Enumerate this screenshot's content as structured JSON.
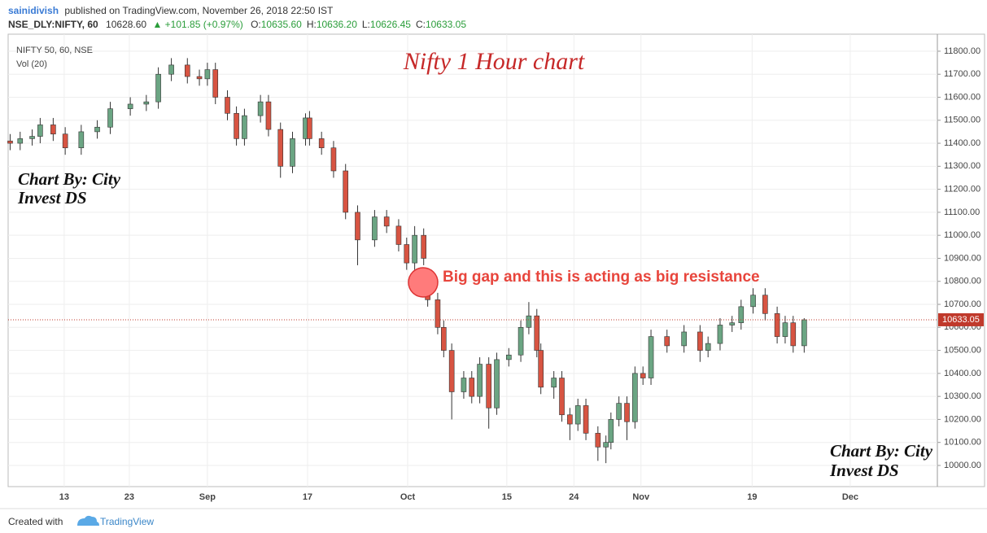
{
  "header": {
    "author": "sainidivish",
    "published": "published on TradingView.com, November 26, 2018 22:50 IST",
    "symbol": "NSE_DLY:NIFTY, 60",
    "price": "10628.60",
    "change": "▲ +101.85 (+0.97%)",
    "ohlc": [
      {
        "label": "O:",
        "value": "10635.60"
      },
      {
        "label": "H:",
        "value": "10636.20"
      },
      {
        "label": "L:",
        "value": "10626.45"
      },
      {
        "label": "C:",
        "value": "10633.05"
      }
    ]
  },
  "footer": {
    "created": "Created with",
    "brand": "TradingView"
  },
  "chart_data": {
    "type": "candlestick",
    "title": "Nifty 1 Hour chart",
    "pane_label": "NIFTY 50, 60, NSE",
    "volume_label": "Vol (20)",
    "watermarks": [
      [
        "Chart By: City",
        "Invest DS"
      ],
      [
        "Chart By: City",
        "Invest DS"
      ]
    ],
    "annotation": "Big gap and this is acting as big resistance",
    "up_color": "#6ba583",
    "down_color": "#d75442",
    "grid": true,
    "x": [
      -5.4,
      -4.4,
      -3.2,
      -2.4,
      -1.1,
      0.1,
      1.7,
      3.3,
      4.6,
      6.6,
      8.2,
      9.4,
      10.7,
      12.3,
      13.5,
      14.3,
      15.1,
      16.3,
      17.2,
      18.0,
      19.6,
      20.4,
      21.6,
      22.8,
      24.1,
      24.5,
      25.7,
      26.9,
      28.1,
      29.3,
      31.0,
      32.2,
      33.4,
      34.2,
      35.0,
      35.9,
      36.3,
      37.3,
      37.9,
      38.7,
      39.9,
      40.7,
      41.5,
      42.4,
      43.2,
      44.4,
      45.6,
      46.4,
      47.2,
      47.6,
      48.9,
      49.7,
      50.5,
      51.3,
      52.1,
      53.3,
      54.1,
      54.6,
      55.4,
      56.2,
      57.0,
      57.8,
      58.6,
      60.2,
      61.9,
      63.5,
      64.3,
      65.5,
      66.7,
      67.6,
      68.8,
      70.0,
      71.2,
      72.0,
      72.8,
      73.9
    ],
    "open": [
      11410,
      11400,
      11420,
      11430,
      11480,
      11440,
      11380,
      11450,
      11470,
      11550,
      11570,
      11580,
      11700,
      11740,
      11690,
      11680,
      11720,
      11600,
      11530,
      11420,
      11520,
      11580,
      11460,
      11300,
      11420,
      11510,
      11420,
      11380,
      11280,
      11100,
      10980,
      11080,
      11040,
      10960,
      10880,
      11000,
      10760,
      10720,
      10600,
      10500,
      10320,
      10380,
      10300,
      10440,
      10250,
      10460,
      10480,
      10600,
      10650,
      10500,
      10340,
      10380,
      10220,
      10180,
      10260,
      10140,
      10080,
      10100,
      10200,
      10270,
      10190,
      10400,
      10380,
      10560,
      10520,
      10580,
      10500,
      10530,
      10610,
      10620,
      10690,
      10740,
      10660,
      10560,
      10620,
      10520
    ],
    "high": [
      11440,
      11450,
      11460,
      11510,
      11510,
      11470,
      11480,
      11500,
      11580,
      11600,
      11610,
      11730,
      11770,
      11770,
      11720,
      11750,
      11750,
      11630,
      11560,
      11550,
      11610,
      11610,
      11490,
      11450,
      11530,
      11540,
      11450,
      11410,
      11310,
      11130,
      11110,
      11110,
      11070,
      10990,
      11040,
      11030,
      10790,
      10750,
      10630,
      10530,
      10410,
      10410,
      10470,
      10470,
      10490,
      10510,
      10630,
      10710,
      10680,
      10530,
      10410,
      10410,
      10250,
      10290,
      10290,
      10170,
      10130,
      10230,
      10300,
      10300,
      10430,
      10430,
      10590,
      10590,
      10610,
      10610,
      10560,
      10640,
      10650,
      10720,
      10770,
      10770,
      10690,
      10650,
      10650,
      10640
    ],
    "low": [
      11370,
      11370,
      11390,
      11400,
      11410,
      11350,
      11350,
      11420,
      11440,
      11520,
      11540,
      11550,
      11670,
      11660,
      11650,
      11650,
      11570,
      11500,
      11390,
      11390,
      11490,
      11430,
      11250,
      11270,
      11390,
      11390,
      11350,
      11250,
      11070,
      10870,
      10950,
      11010,
      10930,
      10850,
      10850,
      10870,
      10690,
      10570,
      10470,
      10200,
      10290,
      10270,
      10270,
      10160,
      10220,
      10430,
      10450,
      10570,
      10470,
      10310,
      10290,
      10190,
      10110,
      10150,
      10110,
      10020,
      10010,
      10070,
      10170,
      10110,
      10160,
      10350,
      10350,
      10490,
      10490,
      10450,
      10470,
      10500,
      10580,
      10590,
      10660,
      10630,
      10530,
      10530,
      10490,
      10490
    ],
    "close": [
      11400,
      11420,
      11430,
      11480,
      11440,
      11380,
      11450,
      11470,
      11550,
      11570,
      11580,
      11700,
      11740,
      11690,
      11680,
      11720,
      11600,
      11530,
      11420,
      11520,
      11580,
      11460,
      11300,
      11420,
      11510,
      11420,
      11380,
      11280,
      11100,
      10980,
      11080,
      11040,
      10960,
      10880,
      11000,
      10900,
      10720,
      10600,
      10500,
      10320,
      10380,
      10300,
      10440,
      10250,
      10460,
      10480,
      10600,
      10650,
      10500,
      10340,
      10380,
      10220,
      10180,
      10260,
      10140,
      10080,
      10100,
      10200,
      10270,
      10190,
      10400,
      10380,
      10560,
      10520,
      10580,
      10500,
      10530,
      10610,
      10620,
      10690,
      10740,
      10660,
      10560,
      10620,
      10520,
      10633.05
    ],
    "last_price": 10633.05,
    "xlim": [
      -5.6,
      87.2
    ],
    "xticks": [
      {
        "value": 0,
        "label": "13"
      },
      {
        "value": 6.5,
        "label": "23"
      },
      {
        "value": 14.3,
        "label": "Sep"
      },
      {
        "value": 24.3,
        "label": "17"
      },
      {
        "value": 34.3,
        "label": "Oct"
      },
      {
        "value": 44.2,
        "label": "15"
      },
      {
        "value": 50.9,
        "label": "24"
      },
      {
        "value": 57.6,
        "label": "Nov"
      },
      {
        "value": 68.7,
        "label": "19"
      },
      {
        "value": 78.5,
        "label": "Dec"
      }
    ],
    "ylim": [
      9908,
      11874
    ],
    "yticks": [
      {
        "value": 10000,
        "label": "10000.00"
      },
      {
        "value": 10100,
        "label": "10100.00"
      },
      {
        "value": 10200,
        "label": "10200.00"
      },
      {
        "value": 10300,
        "label": "10300.00"
      },
      {
        "value": 10400,
        "label": "10400.00"
      },
      {
        "value": 10500,
        "label": "10500.00"
      },
      {
        "value": 10600,
        "label": "10600.00"
      },
      {
        "value": 10700,
        "label": "10700.00"
      },
      {
        "value": 10800,
        "label": "10800.00"
      },
      {
        "value": 10900,
        "label": "10900.00"
      },
      {
        "value": 11000,
        "label": "11000.00"
      },
      {
        "value": 11100,
        "label": "11100.00"
      },
      {
        "value": 11200,
        "label": "11200.00"
      },
      {
        "value": 11300,
        "label": "11300.00"
      },
      {
        "value": 11400,
        "label": "11400.00"
      },
      {
        "value": 11500,
        "label": "11500.00"
      },
      {
        "value": 11600,
        "label": "11600.00"
      },
      {
        "value": 11700,
        "label": "11700.00"
      },
      {
        "value": 11800,
        "label": "11800.00"
      }
    ]
  }
}
